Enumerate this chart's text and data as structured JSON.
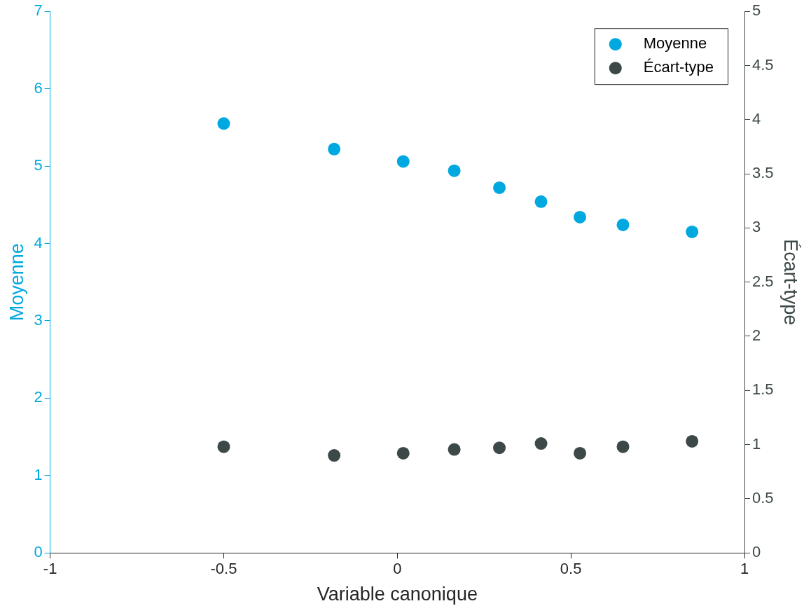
{
  "chart_data": {
    "type": "scatter",
    "xlabel": "Variable canonique",
    "ylabel": "Moyenne",
    "y2label": "Écart-type",
    "x": [
      -0.5,
      -0.182,
      0.017,
      0.164,
      0.294,
      0.414,
      0.526,
      0.65,
      0.849
    ],
    "series": [
      {
        "name": "Moyenne",
        "color": "#00a8e0",
        "values": [
          5.55,
          5.22,
          5.06,
          4.94,
          4.72,
          4.54,
          4.34,
          4.24,
          4.15
        ]
      },
      {
        "name": "Écart-type",
        "color": "#3d4848",
        "axis": "y2",
        "values": [
          0.98,
          0.9,
          0.92,
          0.955,
          0.97,
          1.01,
          0.92,
          0.98,
          1.03
        ]
      }
    ],
    "xlim": [
      -1,
      1
    ],
    "xticks": [
      -1,
      -0.5,
      0,
      0.5,
      1
    ],
    "ylim": [
      0,
      7
    ],
    "yticks": [
      0,
      1,
      2,
      3,
      4,
      5,
      6,
      7
    ],
    "y2lim": [
      0,
      5
    ],
    "y2ticks": [
      0,
      0.5,
      1,
      1.5,
      2,
      2.5,
      3,
      3.5,
      4,
      4.5,
      5
    ],
    "legend": "top right",
    "marker": "circle",
    "grid": false
  }
}
